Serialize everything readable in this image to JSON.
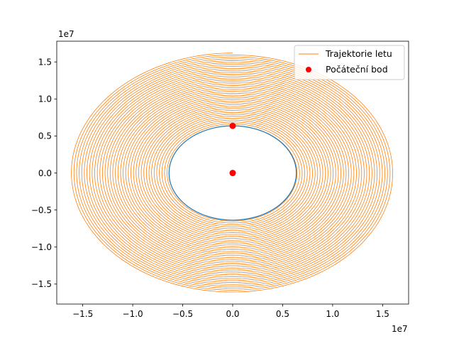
{
  "chart_data": {
    "type": "line",
    "title": "",
    "xlabel": "",
    "ylabel": "",
    "x_offset_label": "1e7",
    "y_offset_label": "1e7",
    "xlim": [
      -1.76,
      1.76
    ],
    "ylim": [
      -1.77,
      1.78
    ],
    "x_ticks": [
      -1.5,
      -1.0,
      -0.5,
      0.0,
      0.5,
      1.0,
      1.5
    ],
    "y_ticks": [
      -1.5,
      -1.0,
      -0.5,
      0.0,
      0.5,
      1.0,
      1.5
    ],
    "x_tick_labels": [
      "−1.5",
      "−1.0",
      "−0.5",
      "0.0",
      "0.5",
      "1.0",
      "1.5"
    ],
    "y_tick_labels": [
      "−1.5",
      "−1.0",
      "−0.5",
      "0.0",
      "0.5",
      "1.0",
      "1.5"
    ],
    "grid": false,
    "legend_position": "top-right",
    "earth": {
      "shape": "circle",
      "center": [
        0,
        0
      ],
      "radius": 0.637,
      "color": "#1f77b4"
    },
    "series": [
      {
        "name": "Trajektorie letu",
        "kind": "line",
        "color": "#ff7f0e",
        "description_shape": "spiral",
        "start": [
          0,
          0.637
        ],
        "center": [
          0,
          0
        ],
        "inner_radius": 0.637,
        "outer_radius": 1.62,
        "revolutions": 38
      },
      {
        "name": "Počáteční bod",
        "kind": "marker",
        "color": "#ff0000",
        "points": [
          [
            0,
            0
          ],
          [
            0,
            0.637
          ]
        ]
      }
    ]
  }
}
